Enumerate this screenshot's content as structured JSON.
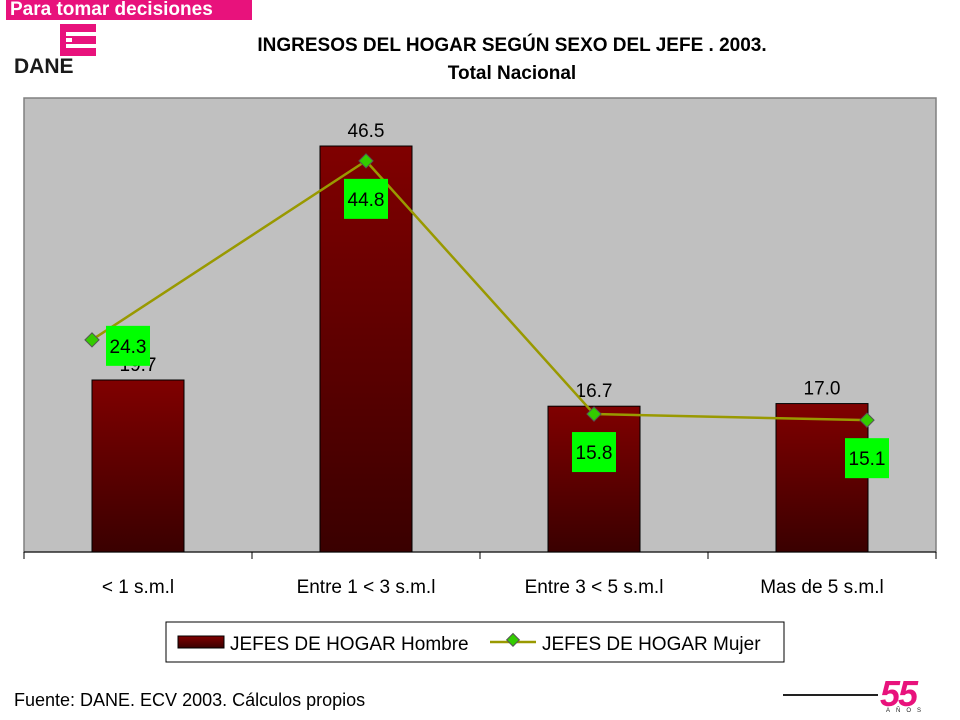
{
  "header": {
    "tagline": "Para tomar decisiones",
    "logo_text": "DANE",
    "title_line1": "INGRESOS DEL HOGAR SEGÚN SEXO DEL JEFE . 2003.",
    "title_line2": "Total Nacional"
  },
  "footer": {
    "source": "Fuente: DANE. ECV  2003. Cálculos propios",
    "anniversary_number": "55",
    "anniversary_label": "AÑOS"
  },
  "colors": {
    "brand": "#e8127c",
    "plot_bg": "#c0c0c0",
    "bar_top": "#800000",
    "bar_bottom": "#3a0000",
    "line": "#999900",
    "marker": "#33cc00",
    "label_bg": "#00ff00"
  },
  "chart_data": {
    "type": "bar",
    "categories": [
      "< 1 s.m.l",
      "Entre 1 < 3 s.m.l",
      "Entre 3 < 5 s.m.l",
      "Mas de 5 s.m.l"
    ],
    "series": [
      {
        "name": "JEFES DE HOGAR Hombre",
        "type": "bar",
        "values": [
          19.7,
          46.5,
          16.7,
          17.0
        ],
        "labels": [
          "19.7",
          "46.5",
          "16.7",
          "17.0"
        ]
      },
      {
        "name": "JEFES DE HOGAR Mujer",
        "type": "line",
        "values": [
          24.3,
          44.8,
          15.8,
          15.1
        ],
        "labels": [
          "24.3",
          "44.8",
          "15.8",
          "15.1"
        ]
      }
    ],
    "ylim": [
      0,
      52
    ],
    "grid": false,
    "legend": "bottom"
  }
}
